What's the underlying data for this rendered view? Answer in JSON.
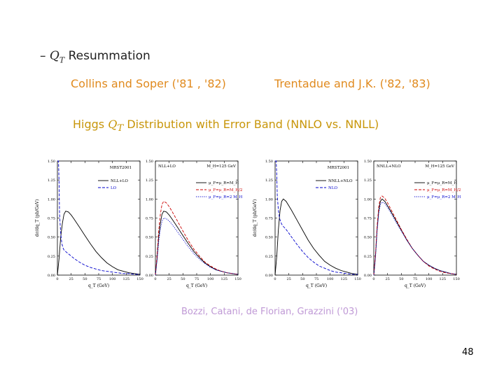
{
  "slide": {
    "bullet": "–",
    "heading_var": "Q",
    "heading_sub": "T",
    "heading_rest": " Resummation",
    "ref_left": "Collins and Soper ('81 , '82)",
    "ref_right": "Trentadue and J.K. ('82, '83)",
    "subtitle_pre": "Higgs ",
    "subtitle_var": "Q",
    "subtitle_sub": "T",
    "subtitle_post": " Distribution with Error Band (NNLO vs. NNLL)",
    "citation": "Bozzi, Catani, de Florian, Grazzini ('03)",
    "page_number": "48"
  },
  "chart_data": [
    {
      "type": "line",
      "label": "MRST2001",
      "xlabel": "q_T (GeV)",
      "ylabel": "dσ/dq_T (pb/GeV)",
      "xlim": [
        0,
        150
      ],
      "ylim": [
        0,
        1.5
      ],
      "xticks": [
        "0",
        "25",
        "50",
        "75",
        "100",
        "125",
        "150"
      ],
      "yticks": [
        "0.00",
        "0.25",
        "0.50",
        "0.75",
        "1.00",
        "1.25",
        "1.50"
      ],
      "legend": [
        "NLL+LO",
        "LO"
      ],
      "series": [
        {
          "name": "NLL+LO",
          "style": "solid",
          "color": "#000000",
          "x": [
            0,
            3,
            6,
            9,
            12,
            15,
            20,
            25,
            30,
            40,
            50,
            60,
            70,
            80,
            90,
            100,
            110,
            120,
            130,
            140,
            150
          ],
          "y": [
            0,
            0.22,
            0.5,
            0.68,
            0.8,
            0.84,
            0.83,
            0.79,
            0.74,
            0.63,
            0.52,
            0.41,
            0.31,
            0.23,
            0.16,
            0.11,
            0.07,
            0.05,
            0.03,
            0.02,
            0.01
          ]
        },
        {
          "name": "LO",
          "style": "dashed",
          "color": "#0000cc",
          "x": [
            0,
            2,
            3,
            4,
            6,
            8,
            10,
            12,
            15,
            20,
            25,
            30,
            40,
            50,
            60,
            70,
            80,
            90,
            100,
            110,
            120,
            130,
            140,
            150
          ],
          "y": [
            1.5,
            1.5,
            1.2,
            0.8,
            0.55,
            0.42,
            0.36,
            0.33,
            0.31,
            0.28,
            0.25,
            0.22,
            0.17,
            0.13,
            0.1,
            0.08,
            0.06,
            0.05,
            0.04,
            0.03,
            0.02,
            0.02,
            0.01,
            0.01
          ]
        }
      ]
    },
    {
      "type": "line",
      "label": "NLL+LO",
      "annotation": "M_H=125 GeV",
      "xlabel": "q_T (GeV)",
      "xlim": [
        0,
        150
      ],
      "ylim": [
        0,
        1.5
      ],
      "xticks": [
        "0",
        "25",
        "50",
        "75",
        "100",
        "125",
        "150"
      ],
      "yticks": [
        "0.00",
        "0.25",
        "0.50",
        "0.75",
        "1.00",
        "1.25",
        "1.50"
      ],
      "legend": [
        "μ_F=μ_R=M_H",
        "μ_F=μ_R=M_H/2",
        "μ_F=μ_R=2 M_H"
      ],
      "series": [
        {
          "name": "μ_F=μ_R=M_H",
          "style": "solid",
          "color": "#000000",
          "x": [
            0,
            3,
            6,
            9,
            12,
            15,
            20,
            25,
            30,
            40,
            50,
            60,
            70,
            80,
            90,
            100,
            110,
            120,
            130,
            140,
            150
          ],
          "y": [
            0,
            0.22,
            0.5,
            0.68,
            0.8,
            0.84,
            0.83,
            0.79,
            0.74,
            0.63,
            0.52,
            0.41,
            0.31,
            0.23,
            0.16,
            0.11,
            0.07,
            0.05,
            0.03,
            0.02,
            0.01
          ]
        },
        {
          "name": "μ_F=μ_R=M_H/2",
          "style": "dashed",
          "color": "#cc0000",
          "x": [
            0,
            3,
            6,
            9,
            12,
            15,
            20,
            25,
            30,
            40,
            50,
            60,
            70,
            80,
            90,
            100,
            110,
            120,
            130,
            140,
            150
          ],
          "y": [
            0,
            0.26,
            0.58,
            0.8,
            0.93,
            0.97,
            0.95,
            0.9,
            0.84,
            0.71,
            0.58,
            0.45,
            0.34,
            0.25,
            0.17,
            0.12,
            0.08,
            0.05,
            0.03,
            0.02,
            0.01
          ]
        },
        {
          "name": "μ_F=μ_R=2 M_H",
          "style": "dotted",
          "color": "#0000cc",
          "x": [
            0,
            3,
            6,
            9,
            12,
            15,
            20,
            25,
            30,
            40,
            50,
            60,
            70,
            80,
            90,
            100,
            110,
            120,
            130,
            140,
            150
          ],
          "y": [
            0,
            0.19,
            0.44,
            0.6,
            0.71,
            0.75,
            0.74,
            0.71,
            0.67,
            0.57,
            0.47,
            0.37,
            0.28,
            0.21,
            0.15,
            0.1,
            0.07,
            0.05,
            0.03,
            0.02,
            0.01
          ]
        }
      ]
    },
    {
      "type": "line",
      "label": "MRST2001",
      "xlabel": "q_T (GeV)",
      "ylabel": "dσ/dq_T (pb/GeV)",
      "xlim": [
        0,
        150
      ],
      "ylim": [
        0,
        1.5
      ],
      "xticks": [
        "0",
        "25",
        "50",
        "75",
        "100",
        "125",
        "150"
      ],
      "yticks": [
        "0.00",
        "0.25",
        "0.50",
        "0.75",
        "1.00",
        "1.25",
        "1.50"
      ],
      "legend": [
        "NNLL+NLO",
        "NLO"
      ],
      "series": [
        {
          "name": "NNLL+NLO",
          "style": "solid",
          "color": "#000000",
          "x": [
            0,
            3,
            6,
            9,
            12,
            15,
            20,
            25,
            30,
            40,
            50,
            60,
            70,
            80,
            90,
            100,
            110,
            120,
            130,
            140,
            150
          ],
          "y": [
            0,
            0.25,
            0.6,
            0.85,
            0.97,
            1.0,
            0.97,
            0.91,
            0.85,
            0.72,
            0.59,
            0.46,
            0.35,
            0.26,
            0.18,
            0.13,
            0.09,
            0.06,
            0.04,
            0.02,
            0.01
          ]
        },
        {
          "name": "NLO",
          "style": "dashed",
          "color": "#0000cc",
          "x": [
            0,
            2,
            3,
            4,
            6,
            8,
            10,
            12,
            15,
            20,
            25,
            30,
            40,
            50,
            60,
            70,
            80,
            90,
            100,
            110,
            120,
            130,
            140,
            150
          ],
          "y": [
            1.5,
            1.5,
            1.3,
            1.05,
            0.85,
            0.75,
            0.7,
            0.67,
            0.64,
            0.6,
            0.55,
            0.5,
            0.4,
            0.31,
            0.23,
            0.17,
            0.12,
            0.09,
            0.06,
            0.04,
            0.03,
            0.02,
            0.01,
            0.01
          ]
        }
      ]
    },
    {
      "type": "line",
      "label": "NNLL+NLO",
      "annotation": "M_H=125 GeV",
      "xlabel": "q_T (GeV)",
      "xlim": [
        0,
        150
      ],
      "ylim": [
        0,
        1.5
      ],
      "xticks": [
        "0",
        "25",
        "50",
        "75",
        "100",
        "125",
        "150"
      ],
      "yticks": [
        "0.00",
        "0.25",
        "0.50",
        "0.75",
        "1.00",
        "1.25",
        "1.50"
      ],
      "legend": [
        "μ_F=μ_R=M_H",
        "μ_F=μ_R=M_H/2",
        "μ_F=μ_R=2 M_H"
      ],
      "series": [
        {
          "name": "μ_F=μ_R=M_H",
          "style": "solid",
          "color": "#000000",
          "x": [
            0,
            3,
            6,
            9,
            12,
            15,
            20,
            25,
            30,
            40,
            50,
            60,
            70,
            80,
            90,
            100,
            110,
            120,
            130,
            140,
            150
          ],
          "y": [
            0,
            0.25,
            0.6,
            0.85,
            0.97,
            1.0,
            0.97,
            0.91,
            0.85,
            0.72,
            0.59,
            0.46,
            0.35,
            0.26,
            0.18,
            0.13,
            0.09,
            0.06,
            0.04,
            0.02,
            0.01
          ]
        },
        {
          "name": "μ_F=μ_R=M_H/2",
          "style": "dashed",
          "color": "#cc0000",
          "x": [
            0,
            3,
            6,
            9,
            12,
            15,
            20,
            25,
            30,
            40,
            50,
            60,
            70,
            80,
            90,
            100,
            110,
            120,
            130,
            140,
            150
          ],
          "y": [
            0,
            0.27,
            0.64,
            0.9,
            1.02,
            1.04,
            1.01,
            0.95,
            0.88,
            0.74,
            0.6,
            0.47,
            0.35,
            0.26,
            0.18,
            0.12,
            0.08,
            0.05,
            0.03,
            0.02,
            0.01
          ]
        },
        {
          "name": "μ_F=μ_R=2 M_H",
          "style": "dotted",
          "color": "#0000cc",
          "x": [
            0,
            3,
            6,
            9,
            12,
            15,
            20,
            25,
            30,
            40,
            50,
            60,
            70,
            80,
            90,
            100,
            110,
            120,
            130,
            140,
            150
          ],
          "y": [
            0,
            0.23,
            0.57,
            0.81,
            0.93,
            0.96,
            0.94,
            0.89,
            0.83,
            0.7,
            0.58,
            0.46,
            0.35,
            0.26,
            0.18,
            0.13,
            0.09,
            0.06,
            0.04,
            0.02,
            0.01
          ]
        }
      ]
    }
  ]
}
